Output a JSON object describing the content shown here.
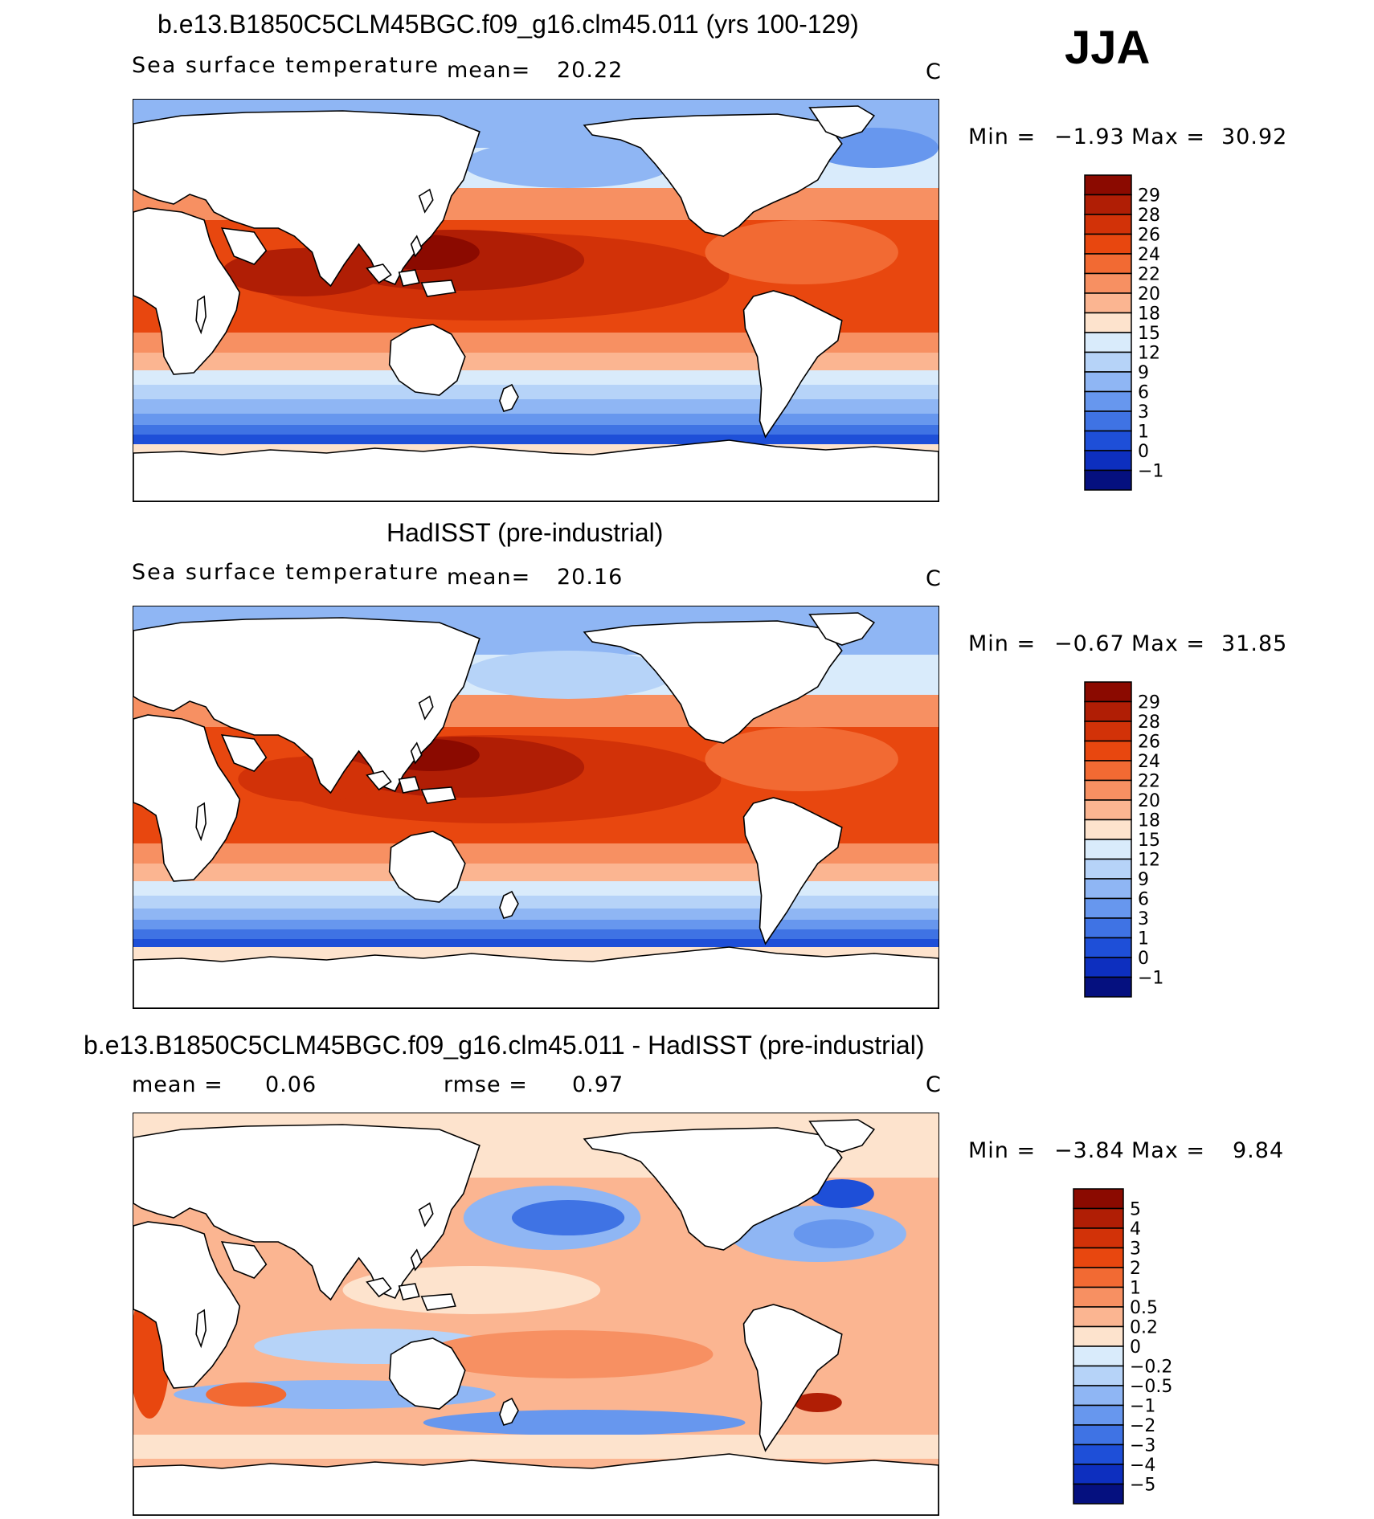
{
  "season": "JJA",
  "panels": [
    {
      "id": "model",
      "title": "b.e13.B1850C5CLM45BGC.f09_g16.clm45.011 (yrs 100-129)",
      "variable": "Sea surface temperature",
      "mean_label": "mean=",
      "mean_value": "20.22",
      "units": "C",
      "min_label": "Min =",
      "min_value": "−1.93",
      "max_label": "Max =",
      "max_value": "30.92",
      "colorbar": {
        "labels": [
          "29",
          "28",
          "26",
          "24",
          "22",
          "20",
          "18",
          "15",
          "12",
          "9",
          "6",
          "3",
          "1",
          "0",
          "−1"
        ],
        "colors": [
          "#8b0a00",
          "#b01e05",
          "#d23208",
          "#e8470f",
          "#f26a33",
          "#f79062",
          "#fbb591",
          "#fde3cd",
          "#d9ebfb",
          "#b6d3f8",
          "#8fb6f4",
          "#6797ee",
          "#3f73e4",
          "#1e4fd8",
          "#0d2fbf",
          "#05107f"
        ]
      }
    },
    {
      "id": "obs",
      "title": "HadISST (pre-industrial)",
      "variable": "Sea surface temperature",
      "mean_label": "mean=",
      "mean_value": "20.16",
      "units": "C",
      "min_label": "Min =",
      "min_value": "−0.67",
      "max_label": "Max =",
      "max_value": "31.85",
      "colorbar": {
        "labels": [
          "29",
          "28",
          "26",
          "24",
          "22",
          "20",
          "18",
          "15",
          "12",
          "9",
          "6",
          "3",
          "1",
          "0",
          "−1"
        ],
        "colors": [
          "#8b0a00",
          "#b01e05",
          "#d23208",
          "#e8470f",
          "#f26a33",
          "#f79062",
          "#fbb591",
          "#fde3cd",
          "#d9ebfb",
          "#b6d3f8",
          "#8fb6f4",
          "#6797ee",
          "#3f73e4",
          "#1e4fd8",
          "#0d2fbf",
          "#05107f"
        ]
      }
    },
    {
      "id": "diff",
      "title": "b.e13.B1850C5CLM45BGC.f09_g16.clm45.011 - HadISST (pre-industrial)",
      "mean_label": "mean =",
      "mean_value": "0.06",
      "rmse_label": "rmse =",
      "rmse_value": "0.97",
      "units": "C",
      "min_label": "Min =",
      "min_value": "−3.84",
      "max_label": "Max =",
      "max_value": "9.84",
      "colorbar": {
        "labels": [
          "5",
          "4",
          "3",
          "2",
          "1",
          "0.5",
          "0.2",
          "0",
          "−0.2",
          "−0.5",
          "−1",
          "−2",
          "−3",
          "−4",
          "−5"
        ],
        "colors": [
          "#8b0a00",
          "#b01e05",
          "#d23208",
          "#e8470f",
          "#f26a33",
          "#f79062",
          "#fbb591",
          "#fde3cd",
          "#d9ebfb",
          "#b6d3f8",
          "#8fb6f4",
          "#6797ee",
          "#3f73e4",
          "#1e4fd8",
          "#0d2fbf",
          "#05107f"
        ]
      }
    }
  ]
}
